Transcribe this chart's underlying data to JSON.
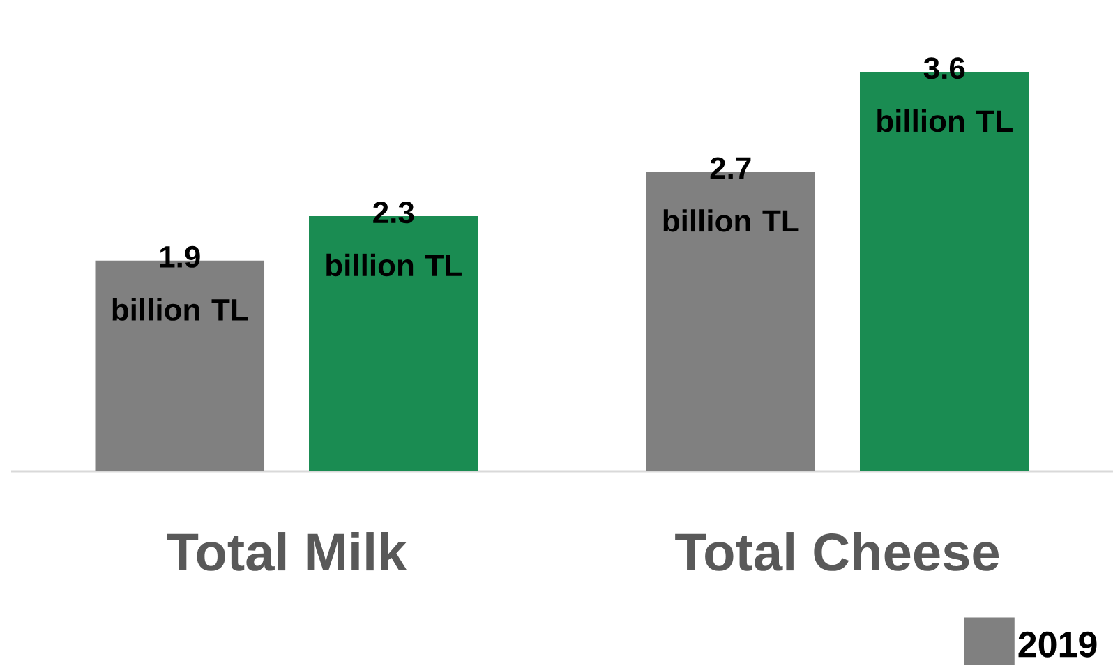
{
  "chart_data": {
    "type": "bar",
    "categories": [
      "Total Milk",
      "Total Cheese"
    ],
    "series": [
      {
        "name": "2019",
        "color": "#808080",
        "values": [
          1.9,
          2.7
        ],
        "value_labels": [
          "1.9 billion TL",
          "2.7 billion TL"
        ]
      },
      {
        "color": "#1a8c52",
        "values": [
          2.3,
          3.6
        ],
        "value_labels": [
          "2.3 billion TL",
          "3.6 billion TL"
        ]
      }
    ],
    "legend": "bottom right"
  }
}
